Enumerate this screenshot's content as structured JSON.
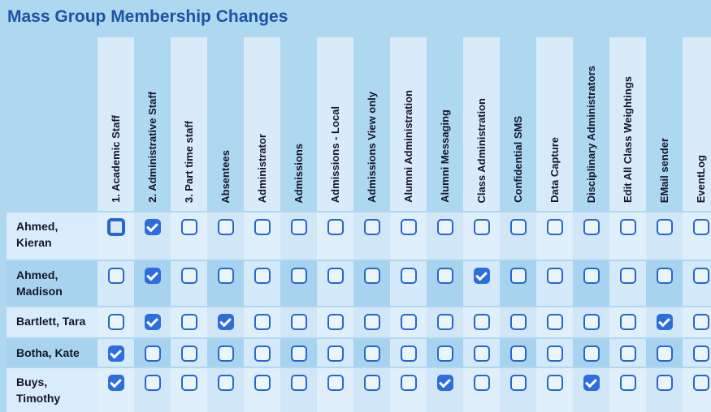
{
  "title": "Mass Group Membership Changes",
  "table": {
    "columns": [
      "1. Academic Staff",
      "2. Administrative Staff",
      "3. Part time staff",
      "Absentees",
      "Administrator",
      "Admissions",
      "Admissions - Local",
      "Admissions View only",
      "Alumni Administration",
      "Alumni Messaging",
      "Class Administration",
      "Confidential SMS",
      "Data Capture",
      "Disciplinary Administrators",
      "Edit All Class Weightings",
      "EMail sender",
      "EventLog"
    ],
    "rows": [
      {
        "name": "Ahmed, Kieran",
        "name_lines": [
          "Ahmed,",
          "Kieran"
        ],
        "checked": [
          "2. Administrative Staff"
        ]
      },
      {
        "name": "Ahmed, Madison",
        "name_lines": [
          "Ahmed,",
          "Madison"
        ],
        "checked": [
          "2. Administrative Staff",
          "Class Administration"
        ]
      },
      {
        "name": "Bartlett, Tara",
        "name_lines": [
          "Bartlett, Tara"
        ],
        "checked": [
          "2. Administrative Staff",
          "Absentees",
          "EMail sender"
        ]
      },
      {
        "name": "Botha, Kate",
        "name_lines": [
          "Botha, Kate"
        ],
        "checked": [
          "1. Academic Staff"
        ]
      },
      {
        "name": "Buys, Timothy",
        "name_lines": [
          "Buys,",
          "Timothy"
        ],
        "checked": [
          "1. Academic Staff",
          "Alumni Messaging",
          "Disciplinary Administrators"
        ]
      }
    ],
    "focused_checkbox": {
      "row": "Ahmed, Kieran",
      "column": "1. Academic Staff"
    }
  },
  "colors": {
    "page_background": "#aed7f0",
    "title_text": "#1b53a5",
    "checkbox_border": "#2766d2",
    "checkbox_checked_fill": "#2d6edc",
    "cell_dark": "#a8d3ee",
    "cell_light": "#dfeffc"
  }
}
